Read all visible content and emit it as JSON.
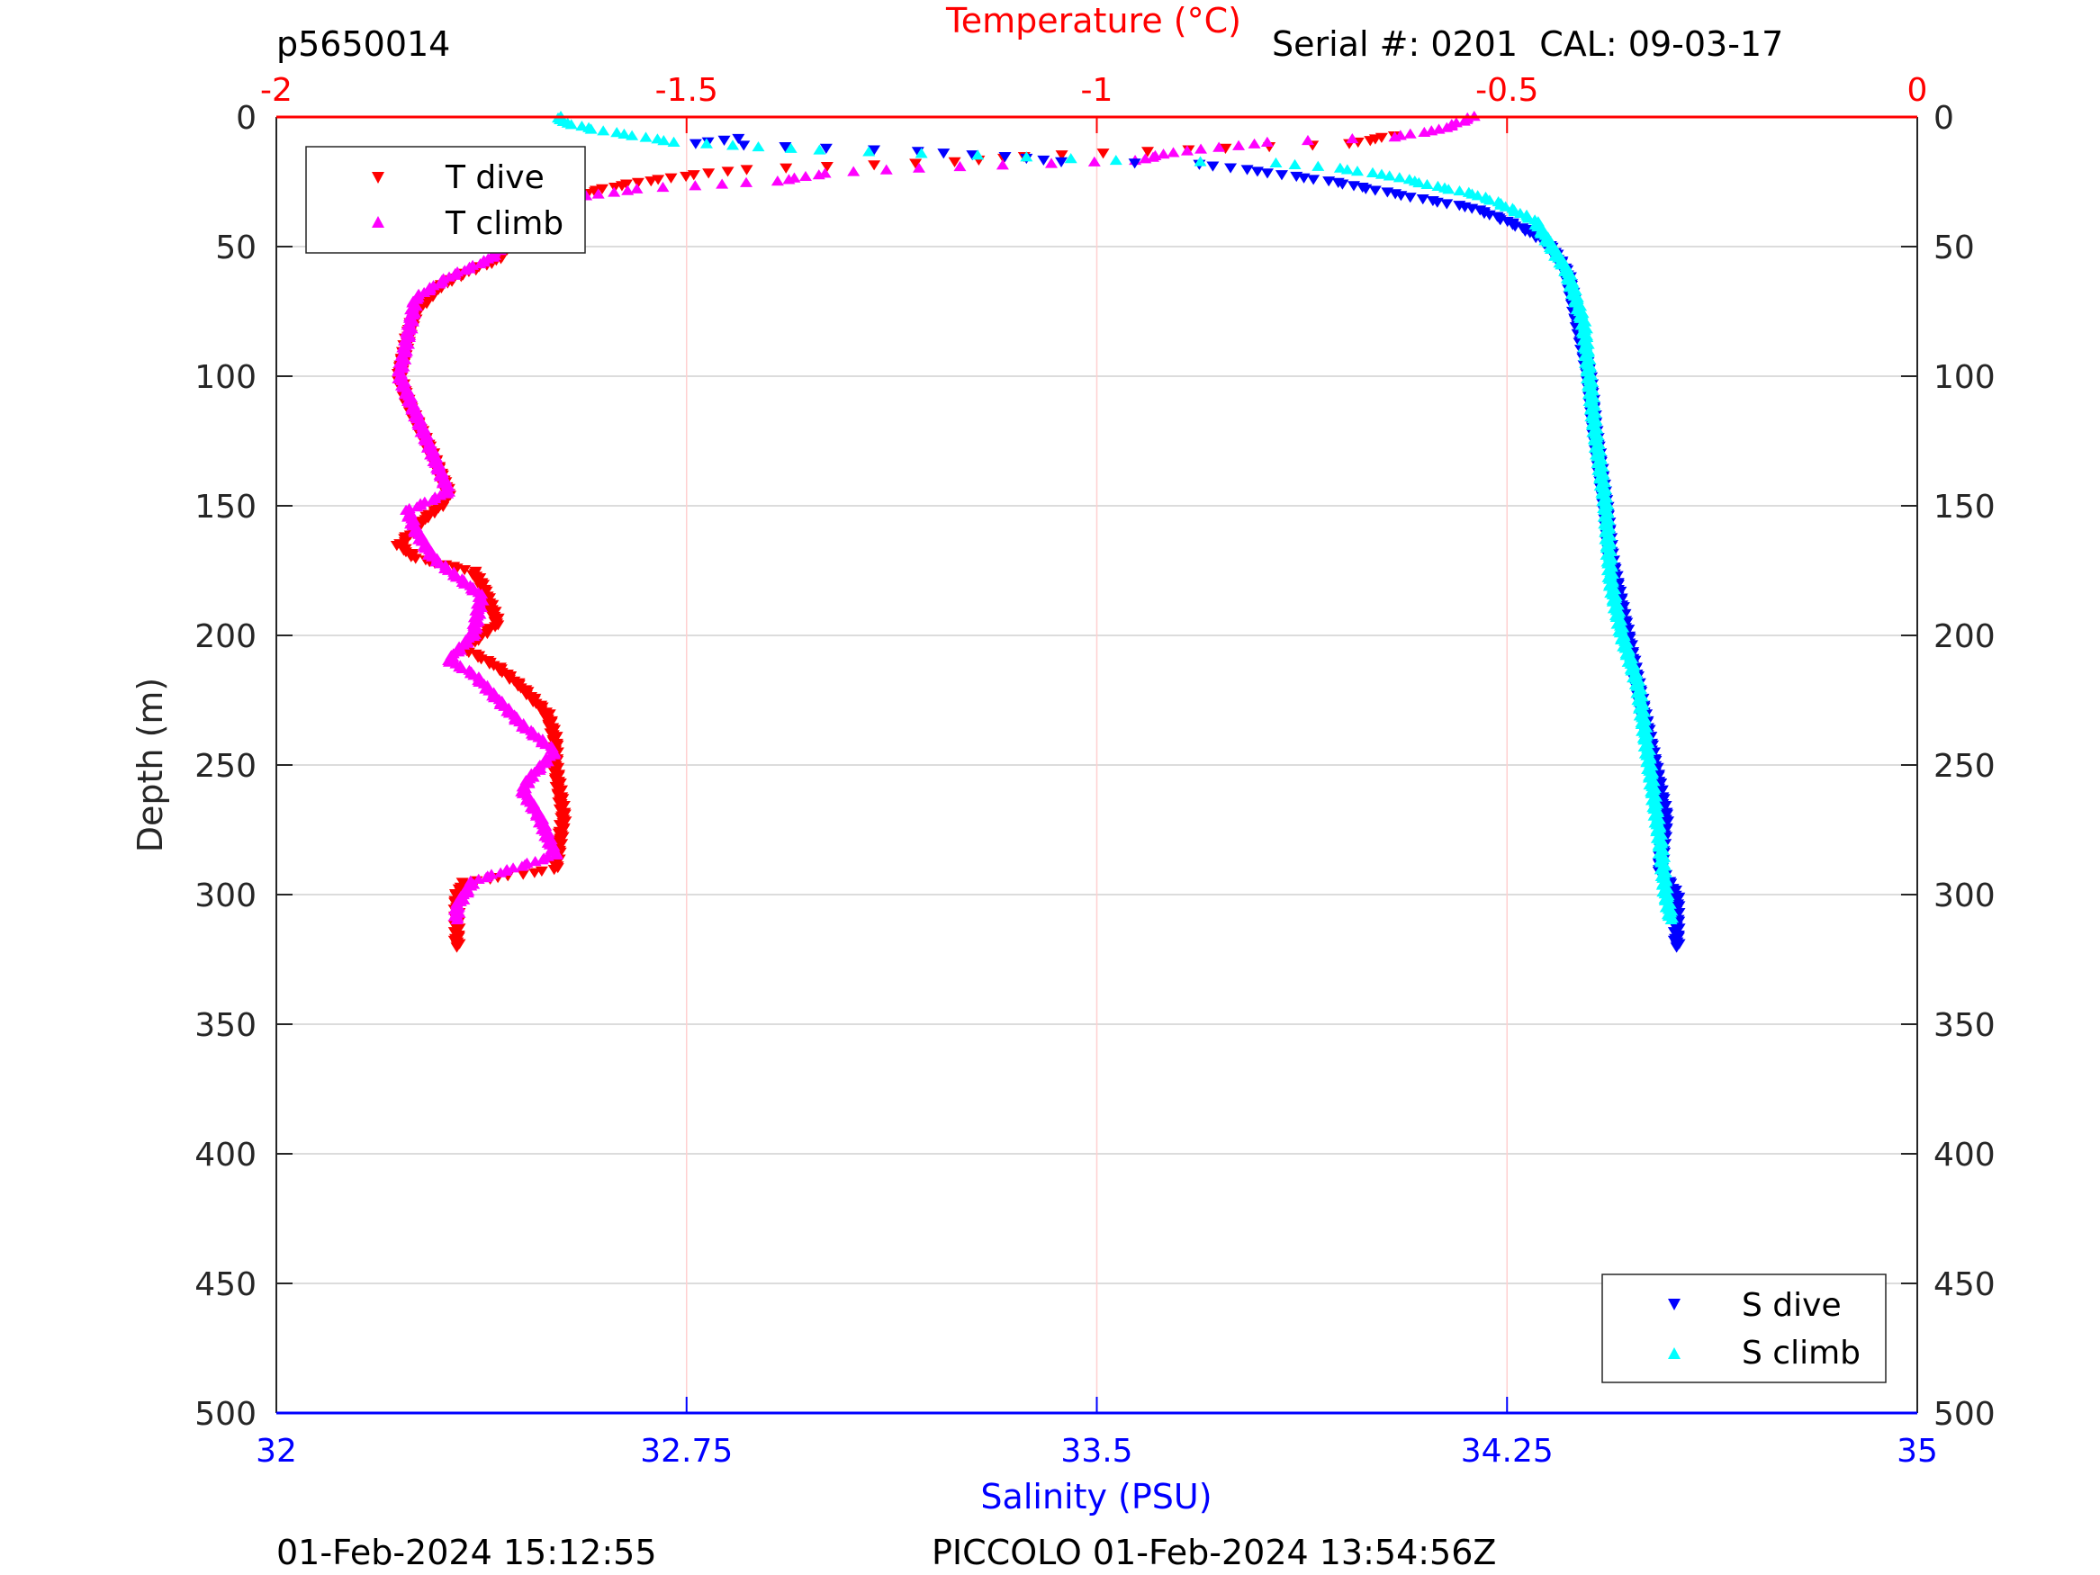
{
  "header": {
    "profile_id": "p5650014",
    "serial": "Serial #: 0201  CAL: 09-03-17"
  },
  "footer": {
    "left": "01-Feb-2024 15:12:55",
    "right": "PICCOLO 01-Feb-2024 13:54:56Z"
  },
  "colors": {
    "t_dive": "#ff0000",
    "t_climb": "#ff00ff",
    "s_dive": "#0000ff",
    "s_climb": "#00ffff",
    "temp_axis": "#ff0000",
    "sal_axis": "#0000ff"
  },
  "chart_data": {
    "type": "scatter",
    "ylabel": "Depth (m)",
    "ylim": [
      0,
      500
    ],
    "yticks": [
      "0",
      "50",
      "100",
      "150",
      "200",
      "250",
      "300",
      "350",
      "400",
      "450",
      "500"
    ],
    "y_reversed": true,
    "grid": true,
    "top_axis": {
      "label": "Temperature (°C)",
      "lim": [
        -2,
        0
      ],
      "ticks": [
        "-2",
        "-1.5",
        "-1",
        "-0.5",
        "0"
      ]
    },
    "bottom_axis": {
      "label": "Salinity (PSU)",
      "lim": [
        32,
        35
      ],
      "ticks": [
        "32",
        "32.75",
        "33.5",
        "34.25",
        "35"
      ]
    },
    "legends": [
      {
        "placement": "top-left",
        "entries": [
          "T dive",
          "T climb"
        ]
      },
      {
        "placement": "bottom-right",
        "entries": [
          "S dive",
          "S climb"
        ]
      }
    ],
    "series": [
      {
        "name": "T dive",
        "axis": "temperature",
        "marker": "triangle-down",
        "points": [
          [
            7,
            -0.64
          ],
          [
            10,
            -0.69
          ],
          [
            13,
            -0.94
          ],
          [
            15,
            -1.09
          ],
          [
            17,
            -1.17
          ],
          [
            20,
            -1.43
          ],
          [
            22,
            -1.49
          ],
          [
            25,
            -1.56
          ],
          [
            28,
            -1.61
          ],
          [
            33,
            -1.65
          ],
          [
            40,
            -1.68
          ],
          [
            45,
            -1.71
          ],
          [
            55,
            -1.73
          ],
          [
            60,
            -1.77
          ],
          [
            65,
            -1.8
          ],
          [
            75,
            -1.83
          ],
          [
            85,
            -1.84
          ],
          [
            100,
            -1.85
          ],
          [
            110,
            -1.84
          ],
          [
            130,
            -1.81
          ],
          [
            145,
            -1.79
          ],
          [
            150,
            -1.8
          ],
          [
            155,
            -1.82
          ],
          [
            165,
            -1.85
          ],
          [
            170,
            -1.83
          ],
          [
            175,
            -1.76
          ],
          [
            180,
            -1.75
          ],
          [
            195,
            -1.73
          ],
          [
            205,
            -1.77
          ],
          [
            212,
            -1.73
          ],
          [
            220,
            -1.7
          ],
          [
            230,
            -1.67
          ],
          [
            240,
            -1.66
          ],
          [
            250,
            -1.66
          ],
          [
            270,
            -1.65
          ],
          [
            290,
            -1.66
          ],
          [
            295,
            -1.77
          ],
          [
            300,
            -1.78
          ],
          [
            320,
            -1.78
          ]
        ]
      },
      {
        "name": "T climb",
        "axis": "temperature",
        "marker": "triangle-up",
        "points": [
          [
            0,
            -0.54
          ],
          [
            5,
            -0.58
          ],
          [
            8,
            -0.64
          ],
          [
            10,
            -0.79
          ],
          [
            14,
            -0.91
          ],
          [
            17,
            -0.95
          ],
          [
            20,
            -1.22
          ],
          [
            22,
            -1.33
          ],
          [
            25,
            -1.39
          ],
          [
            28,
            -1.56
          ],
          [
            32,
            -1.65
          ],
          [
            40,
            -1.69
          ],
          [
            55,
            -1.74
          ],
          [
            62,
            -1.79
          ],
          [
            70,
            -1.83
          ],
          [
            100,
            -1.85
          ],
          [
            130,
            -1.81
          ],
          [
            145,
            -1.79
          ],
          [
            152,
            -1.84
          ],
          [
            160,
            -1.83
          ],
          [
            170,
            -1.81
          ],
          [
            185,
            -1.75
          ],
          [
            200,
            -1.76
          ],
          [
            210,
            -1.79
          ],
          [
            215,
            -1.76
          ],
          [
            225,
            -1.73
          ],
          [
            235,
            -1.7
          ],
          [
            245,
            -1.66
          ],
          [
            255,
            -1.69
          ],
          [
            260,
            -1.7
          ],
          [
            270,
            -1.68
          ],
          [
            285,
            -1.66
          ],
          [
            290,
            -1.71
          ],
          [
            295,
            -1.76
          ],
          [
            305,
            -1.78
          ],
          [
            310,
            -1.78
          ]
        ]
      },
      {
        "name": "S dive",
        "axis": "salinity",
        "marker": "triangle-down",
        "points": [
          [
            8,
            32.84
          ],
          [
            10,
            32.77
          ],
          [
            13,
            33.17
          ],
          [
            15,
            33.33
          ],
          [
            17,
            33.44
          ],
          [
            18,
            33.69
          ],
          [
            20,
            33.77
          ],
          [
            22,
            33.84
          ],
          [
            25,
            33.94
          ],
          [
            28,
            34.01
          ],
          [
            30,
            34.06
          ],
          [
            32,
            34.11
          ],
          [
            35,
            34.19
          ],
          [
            40,
            34.25
          ],
          [
            45,
            34.3
          ],
          [
            50,
            34.33
          ],
          [
            60,
            34.36
          ],
          [
            80,
            34.38
          ],
          [
            100,
            34.4
          ],
          [
            120,
            34.41
          ],
          [
            150,
            34.43
          ],
          [
            170,
            34.44
          ],
          [
            190,
            34.46
          ],
          [
            210,
            34.48
          ],
          [
            230,
            34.5
          ],
          [
            250,
            34.52
          ],
          [
            270,
            34.54
          ],
          [
            290,
            34.53
          ],
          [
            300,
            34.56
          ],
          [
            320,
            34.56
          ]
        ]
      },
      {
        "name": "S climb",
        "axis": "salinity",
        "marker": "triangle-up",
        "points": [
          [
            0,
            32.52
          ],
          [
            2,
            32.52
          ],
          [
            5,
            32.58
          ],
          [
            10,
            32.73
          ],
          [
            13,
            32.99
          ],
          [
            15,
            33.28
          ],
          [
            17,
            33.54
          ],
          [
            18,
            33.83
          ],
          [
            20,
            33.94
          ],
          [
            23,
            34.04
          ],
          [
            27,
            34.12
          ],
          [
            30,
            34.19
          ],
          [
            33,
            34.23
          ],
          [
            40,
            34.3
          ],
          [
            50,
            34.33
          ],
          [
            60,
            34.36
          ],
          [
            80,
            34.39
          ],
          [
            100,
            34.4
          ],
          [
            120,
            34.41
          ],
          [
            150,
            34.43
          ],
          [
            180,
            34.44
          ],
          [
            200,
            34.46
          ],
          [
            220,
            34.49
          ],
          [
            250,
            34.51
          ],
          [
            280,
            34.53
          ],
          [
            300,
            34.54
          ],
          [
            310,
            34.55
          ]
        ]
      }
    ]
  }
}
